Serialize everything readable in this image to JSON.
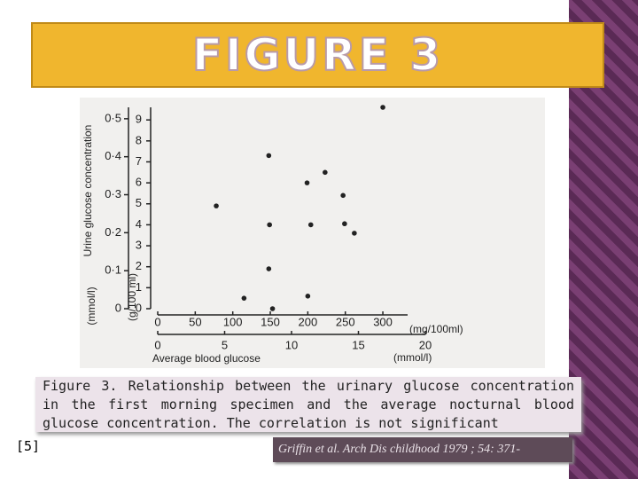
{
  "slide": {
    "title": "FIGURE 3",
    "caption": "Figure 3. Relationship between the urinary glucose concentration in the first morning specimen and the average nocturnal blood glucose concentration. The correlation is not significant",
    "reference": "[5]",
    "citation": "Griffin et al. Arch Dis childhood 1979 ; 54: 371-"
  },
  "chart_data": {
    "type": "scatter",
    "y_title": "Urine glucose concentration",
    "y2_unit": "(mmol/l)",
    "y_unit": "(g/100 ml)",
    "x_unit": "(mg/100ml)",
    "x2_unit": "(mmol/l)",
    "x_title": "Average blood glucose",
    "x": [
      300,
      148,
      223,
      199,
      78,
      247,
      149,
      204,
      249,
      262,
      148,
      200,
      115,
      153
    ],
    "values": [
      9.6,
      7.3,
      6.5,
      6.0,
      4.9,
      5.4,
      4.0,
      4.0,
      4.05,
      3.6,
      1.9,
      0.6,
      0.5,
      0
    ],
    "color": "#222222",
    "xlim": [
      0,
      333
    ],
    "xticks": [
      0,
      50,
      100,
      150,
      200,
      250,
      300
    ],
    "x2lim": [
      0,
      20
    ],
    "x2ticks": [
      0,
      5,
      10,
      15,
      20
    ],
    "ylim": [
      0,
      9.6
    ],
    "yticks": [
      0,
      1,
      2,
      3,
      4,
      5,
      6,
      7,
      8,
      9
    ],
    "y2lim": [
      0,
      0.53
    ],
    "y2ticks": [
      0,
      {
        "value": 0.1,
        "label": "0·1"
      },
      {
        "value": 0.2,
        "label": "0·2"
      },
      {
        "value": 0.3,
        "label": "0·3"
      },
      {
        "value": 0.4,
        "label": "0·4"
      },
      {
        "value": 0.5,
        "label": "0·5"
      }
    ]
  }
}
